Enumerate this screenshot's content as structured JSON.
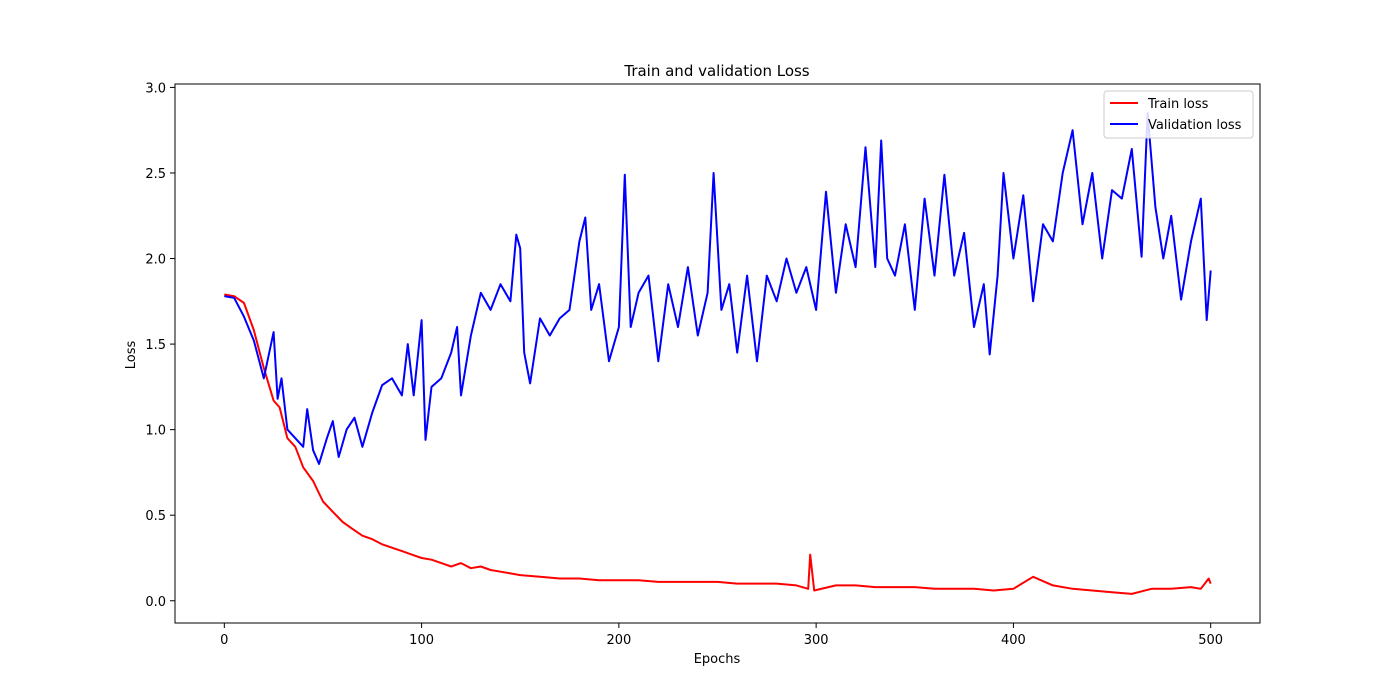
{
  "chart_data": {
    "type": "line",
    "title": "Train and validation Loss",
    "xlabel": "Epochs",
    "ylabel": "Loss",
    "xlim": [
      -25,
      525
    ],
    "ylim": [
      -0.13,
      3.02
    ],
    "xticks": [
      0,
      100,
      200,
      300,
      400,
      500
    ],
    "yticks": [
      0.0,
      0.5,
      1.0,
      1.5,
      2.0,
      2.5,
      3.0
    ],
    "grid": false,
    "legend_position": "top-right",
    "series": [
      {
        "name": "Train loss",
        "color": "#ff0000",
        "points": [
          [
            0,
            1.79
          ],
          [
            5,
            1.78
          ],
          [
            10,
            1.74
          ],
          [
            15,
            1.58
          ],
          [
            20,
            1.36
          ],
          [
            25,
            1.17
          ],
          [
            28,
            1.13
          ],
          [
            32,
            0.95
          ],
          [
            36,
            0.9
          ],
          [
            40,
            0.78
          ],
          [
            45,
            0.7
          ],
          [
            50,
            0.58
          ],
          [
            55,
            0.52
          ],
          [
            60,
            0.46
          ],
          [
            65,
            0.42
          ],
          [
            70,
            0.38
          ],
          [
            75,
            0.36
          ],
          [
            80,
            0.33
          ],
          [
            85,
            0.31
          ],
          [
            90,
            0.29
          ],
          [
            95,
            0.27
          ],
          [
            100,
            0.25
          ],
          [
            105,
            0.24
          ],
          [
            110,
            0.22
          ],
          [
            115,
            0.2
          ],
          [
            120,
            0.22
          ],
          [
            125,
            0.19
          ],
          [
            130,
            0.2
          ],
          [
            135,
            0.18
          ],
          [
            140,
            0.17
          ],
          [
            145,
            0.16
          ],
          [
            150,
            0.15
          ],
          [
            160,
            0.14
          ],
          [
            170,
            0.13
          ],
          [
            180,
            0.13
          ],
          [
            190,
            0.12
          ],
          [
            200,
            0.12
          ],
          [
            210,
            0.12
          ],
          [
            220,
            0.11
          ],
          [
            230,
            0.11
          ],
          [
            240,
            0.11
          ],
          [
            250,
            0.11
          ],
          [
            260,
            0.1
          ],
          [
            270,
            0.1
          ],
          [
            280,
            0.1
          ],
          [
            290,
            0.09
          ],
          [
            296,
            0.07
          ],
          [
            297,
            0.27
          ],
          [
            299,
            0.06
          ],
          [
            310,
            0.09
          ],
          [
            320,
            0.09
          ],
          [
            330,
            0.08
          ],
          [
            340,
            0.08
          ],
          [
            350,
            0.08
          ],
          [
            360,
            0.07
          ],
          [
            370,
            0.07
          ],
          [
            380,
            0.07
          ],
          [
            390,
            0.06
          ],
          [
            400,
            0.07
          ],
          [
            410,
            0.14
          ],
          [
            420,
            0.09
          ],
          [
            430,
            0.07
          ],
          [
            440,
            0.06
          ],
          [
            450,
            0.05
          ],
          [
            460,
            0.04
          ],
          [
            470,
            0.07
          ],
          [
            480,
            0.07
          ],
          [
            490,
            0.08
          ],
          [
            495,
            0.07
          ],
          [
            499,
            0.13
          ],
          [
            500,
            0.1
          ]
        ]
      },
      {
        "name": "Validation loss",
        "color": "#0000ff",
        "points": [
          [
            0,
            1.78
          ],
          [
            5,
            1.77
          ],
          [
            10,
            1.66
          ],
          [
            15,
            1.52
          ],
          [
            20,
            1.3
          ],
          [
            25,
            1.57
          ],
          [
            27,
            1.18
          ],
          [
            29,
            1.3
          ],
          [
            32,
            1.0
          ],
          [
            36,
            0.95
          ],
          [
            40,
            0.9
          ],
          [
            42,
            1.12
          ],
          [
            45,
            0.88
          ],
          [
            48,
            0.8
          ],
          [
            52,
            0.95
          ],
          [
            55,
            1.05
          ],
          [
            58,
            0.84
          ],
          [
            62,
            1.0
          ],
          [
            66,
            1.07
          ],
          [
            70,
            0.9
          ],
          [
            75,
            1.1
          ],
          [
            80,
            1.26
          ],
          [
            85,
            1.3
          ],
          [
            90,
            1.2
          ],
          [
            93,
            1.5
          ],
          [
            96,
            1.2
          ],
          [
            100,
            1.64
          ],
          [
            102,
            0.94
          ],
          [
            105,
            1.25
          ],
          [
            110,
            1.3
          ],
          [
            115,
            1.45
          ],
          [
            118,
            1.6
          ],
          [
            120,
            1.2
          ],
          [
            125,
            1.55
          ],
          [
            130,
            1.8
          ],
          [
            135,
            1.7
          ],
          [
            140,
            1.85
          ],
          [
            145,
            1.75
          ],
          [
            148,
            2.14
          ],
          [
            150,
            2.06
          ],
          [
            152,
            1.45
          ],
          [
            155,
            1.27
          ],
          [
            160,
            1.65
          ],
          [
            165,
            1.55
          ],
          [
            170,
            1.65
          ],
          [
            175,
            1.7
          ],
          [
            180,
            2.1
          ],
          [
            183,
            2.24
          ],
          [
            186,
            1.7
          ],
          [
            190,
            1.85
          ],
          [
            195,
            1.4
          ],
          [
            200,
            1.6
          ],
          [
            203,
            2.49
          ],
          [
            206,
            1.6
          ],
          [
            210,
            1.8
          ],
          [
            215,
            1.9
          ],
          [
            220,
            1.4
          ],
          [
            225,
            1.85
          ],
          [
            230,
            1.6
          ],
          [
            235,
            1.95
          ],
          [
            240,
            1.55
          ],
          [
            245,
            1.8
          ],
          [
            248,
            2.5
          ],
          [
            252,
            1.7
          ],
          [
            256,
            1.85
          ],
          [
            260,
            1.45
          ],
          [
            265,
            1.9
          ],
          [
            270,
            1.4
          ],
          [
            275,
            1.9
          ],
          [
            280,
            1.75
          ],
          [
            285,
            2.0
          ],
          [
            290,
            1.8
          ],
          [
            295,
            1.95
          ],
          [
            300,
            1.7
          ],
          [
            305,
            2.39
          ],
          [
            310,
            1.8
          ],
          [
            315,
            2.2
          ],
          [
            320,
            1.95
          ],
          [
            325,
            2.65
          ],
          [
            330,
            1.95
          ],
          [
            333,
            2.69
          ],
          [
            336,
            2.0
          ],
          [
            340,
            1.9
          ],
          [
            345,
            2.2
          ],
          [
            350,
            1.7
          ],
          [
            355,
            2.35
          ],
          [
            360,
            1.9
          ],
          [
            365,
            2.49
          ],
          [
            370,
            1.9
          ],
          [
            375,
            2.15
          ],
          [
            380,
            1.6
          ],
          [
            385,
            1.85
          ],
          [
            388,
            1.44
          ],
          [
            392,
            1.9
          ],
          [
            395,
            2.5
          ],
          [
            400,
            2.0
          ],
          [
            405,
            2.37
          ],
          [
            410,
            1.75
          ],
          [
            415,
            2.2
          ],
          [
            420,
            2.1
          ],
          [
            425,
            2.5
          ],
          [
            430,
            2.75
          ],
          [
            435,
            2.2
          ],
          [
            440,
            2.5
          ],
          [
            445,
            2.0
          ],
          [
            450,
            2.4
          ],
          [
            455,
            2.35
          ],
          [
            460,
            2.64
          ],
          [
            465,
            2.01
          ],
          [
            468,
            2.85
          ],
          [
            472,
            2.3
          ],
          [
            476,
            2.0
          ],
          [
            480,
            2.25
          ],
          [
            485,
            1.76
          ],
          [
            490,
            2.1
          ],
          [
            495,
            2.35
          ],
          [
            498,
            1.64
          ],
          [
            500,
            1.93
          ]
        ]
      }
    ]
  }
}
